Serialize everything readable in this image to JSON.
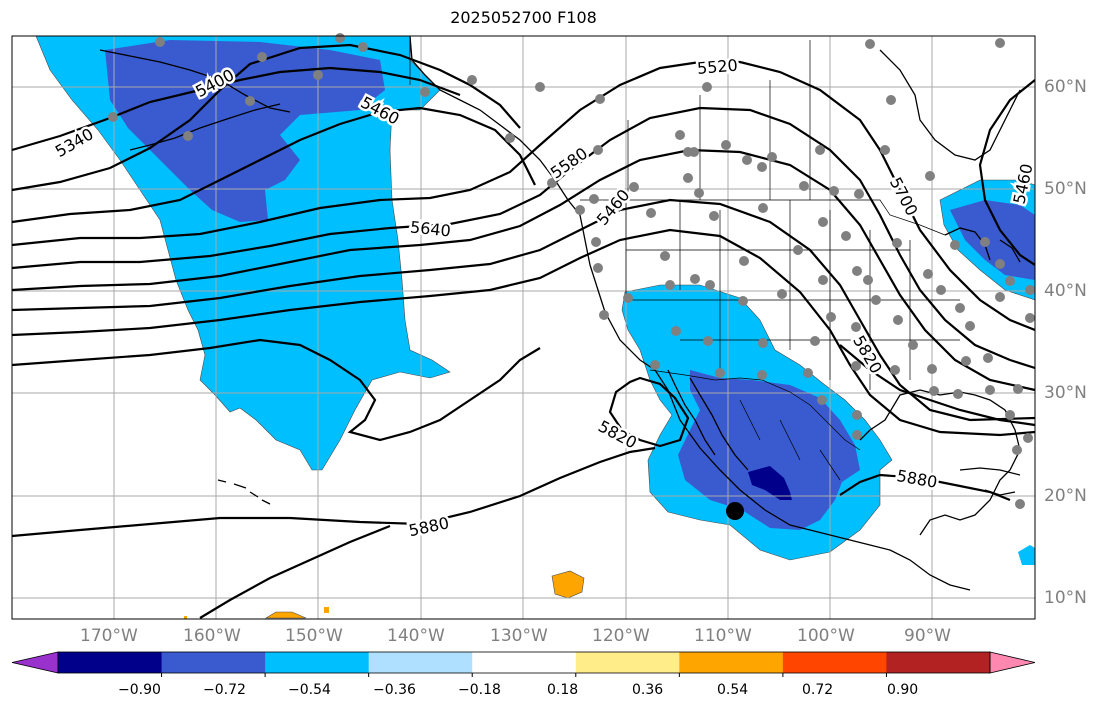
{
  "title": "2025052700 F108",
  "map": {
    "projection": "PlateCarree",
    "lon_range": [
      -180,
      -80
    ],
    "lat_range": [
      8,
      65
    ],
    "gridlines": true
  },
  "lon_ticks": [
    "170°W",
    "160°W",
    "150°W",
    "140°W",
    "130°W",
    "120°W",
    "110°W",
    "100°W",
    "90°W"
  ],
  "lat_ticks": [
    "60°N",
    "50°N",
    "40°N",
    "30°N",
    "20°N",
    "10°N"
  ],
  "contour_labels": [
    "5400",
    "5340",
    "5460",
    "5520",
    "5580",
    "5640",
    "5460",
    "5700",
    "5460",
    "5820",
    "5820",
    "5880",
    "5880"
  ],
  "colorbar": {
    "tick_labels": [
      "−0.90",
      "−0.72",
      "−0.54",
      "−0.36",
      "−0.18",
      "0.18",
      "0.36",
      "0.54",
      "0.72",
      "0.90"
    ],
    "colors": [
      "#9932cc",
      "#00008b",
      "#3a5bd0",
      "#00bfff",
      "#b0e0ff",
      "#ffffff",
      "#ffed8a",
      "#ffa500",
      "#ff4500",
      "#b22222",
      "#ff88b0"
    ]
  }
}
